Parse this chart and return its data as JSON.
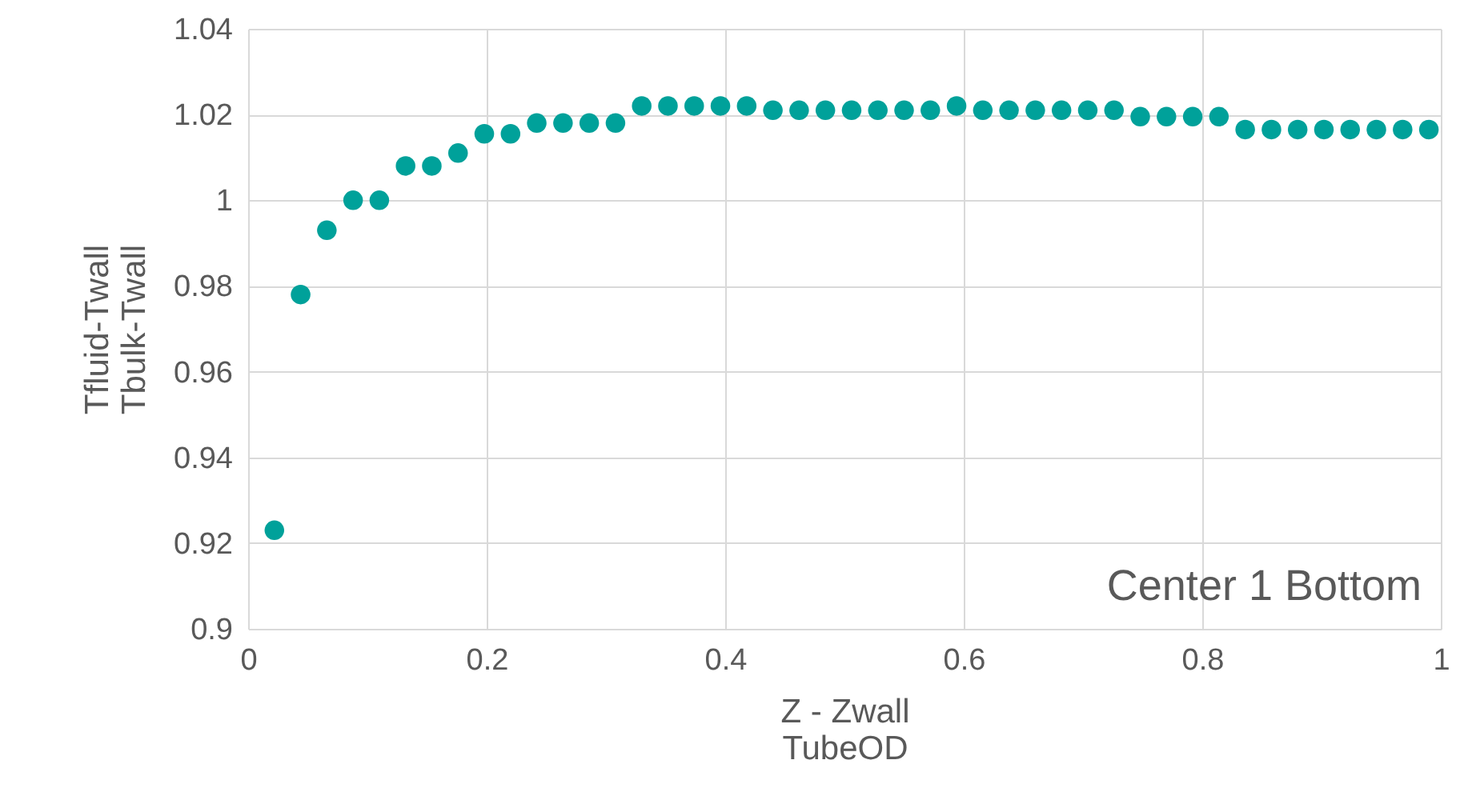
{
  "chart_data": {
    "type": "scatter",
    "xlabel": "Z - Zwall\nTubeOD",
    "ylabel": "Tfluid-Twall\nTbulk-Twall",
    "x": [
      0.022,
      0.044,
      0.066,
      0.088,
      0.11,
      0.132,
      0.154,
      0.176,
      0.198,
      0.22,
      0.242,
      0.264,
      0.286,
      0.308,
      0.33,
      0.352,
      0.374,
      0.396,
      0.418,
      0.44,
      0.462,
      0.484,
      0.506,
      0.528,
      0.55,
      0.572,
      0.594,
      0.616,
      0.638,
      0.66,
      0.682,
      0.704,
      0.726,
      0.748,
      0.77,
      0.792,
      0.814,
      0.836,
      0.858,
      0.88,
      0.902,
      0.924,
      0.946,
      0.968,
      0.99
    ],
    "series": [
      {
        "color": "#00a19a",
        "values": [
          0.923,
          0.978,
          0.993,
          1.0,
          1.0,
          1.008,
          1.008,
          1.011,
          1.0155,
          1.0155,
          1.018,
          1.018,
          1.018,
          1.018,
          1.022,
          1.022,
          1.022,
          1.022,
          1.022,
          1.021,
          1.021,
          1.021,
          1.021,
          1.021,
          1.021,
          1.021,
          1.022,
          1.021,
          1.021,
          1.021,
          1.021,
          1.021,
          1.021,
          1.0195,
          1.0195,
          1.0195,
          1.0195,
          1.0165,
          1.0165,
          1.0165,
          1.0165,
          1.0165,
          1.0165,
          1.0165,
          1.0165
        ]
      }
    ],
    "xlim": [
      0,
      1
    ],
    "xticks": [
      0,
      0.2,
      0.4,
      0.6,
      0.8,
      1
    ],
    "ylim": [
      0.9,
      1.04
    ],
    "yticks": [
      0.9,
      0.92,
      0.94,
      0.96,
      0.98,
      1,
      1.02,
      1.04
    ],
    "grid": true,
    "marker": "circle",
    "annotations": [
      "Center 1 Bottom"
    ]
  }
}
